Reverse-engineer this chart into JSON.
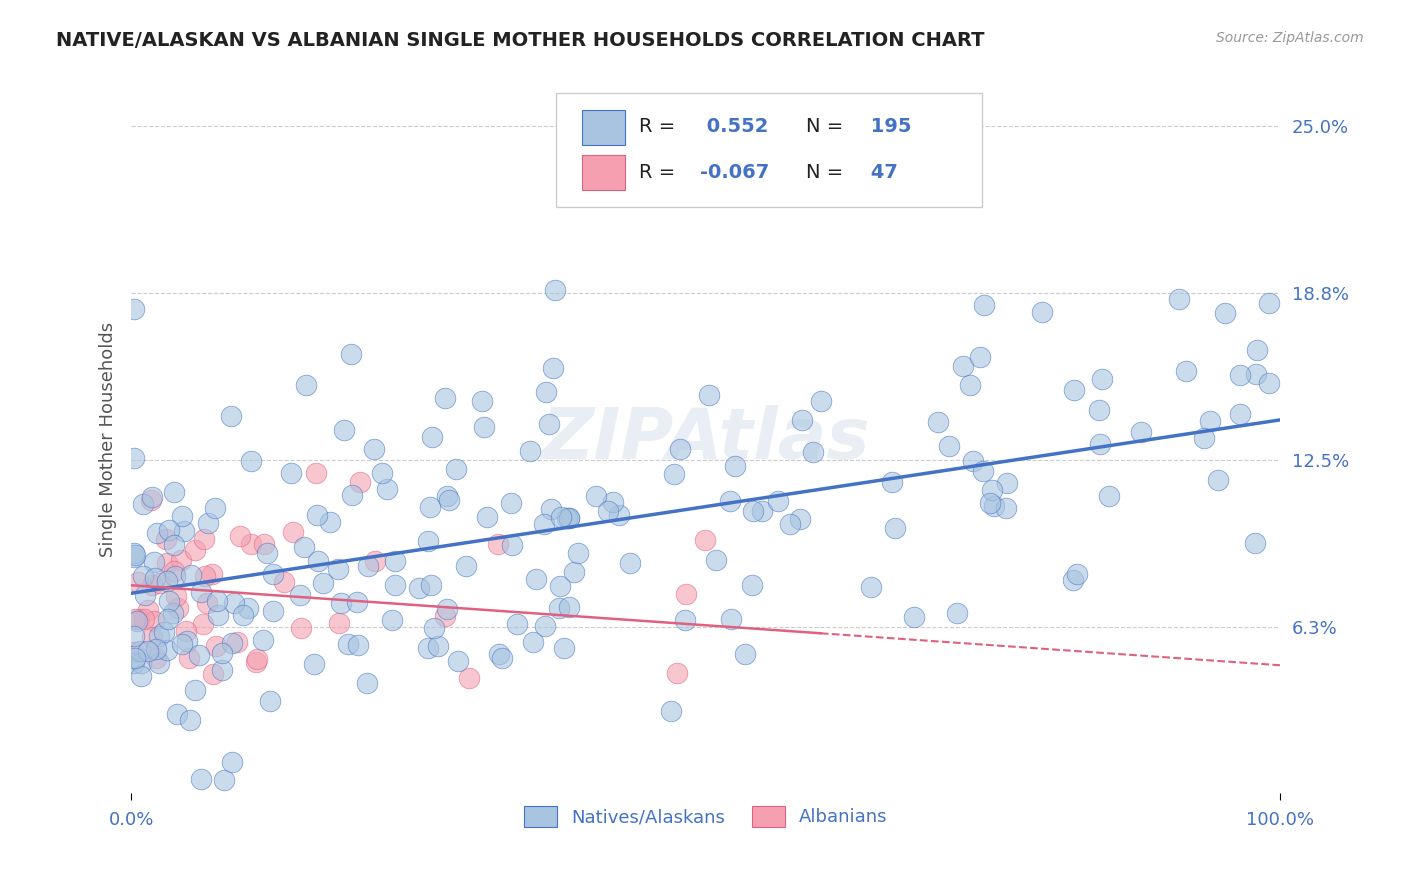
{
  "title": "NATIVE/ALASKAN VS ALBANIAN SINGLE MOTHER HOUSEHOLDS CORRELATION CHART",
  "source_text": "Source: ZipAtlas.com",
  "ylabel": "Single Mother Households",
  "r_native": 0.552,
  "n_native": 195,
  "r_albanian": -0.067,
  "n_albanian": 47,
  "color_native": "#a8c4e0",
  "color_albanian": "#f4a0b0",
  "color_trendline_native": "#4472c4",
  "color_trendline_albanian": "#e06080",
  "color_text": "#4472c4",
  "background_color": "#ffffff",
  "grid_color": "#cccccc",
  "xlim": [
    0,
    100
  ],
  "ylim": [
    0,
    26.5
  ],
  "ytick_labels": [
    "6.3%",
    "12.5%",
    "18.8%",
    "25.0%"
  ],
  "ytick_values": [
    6.25,
    12.5,
    18.75,
    25.0
  ],
  "native_y_slope": 0.065,
  "native_y_intercept": 7.5,
  "albanian_y_slope": -0.03,
  "albanian_y_intercept": 7.8
}
